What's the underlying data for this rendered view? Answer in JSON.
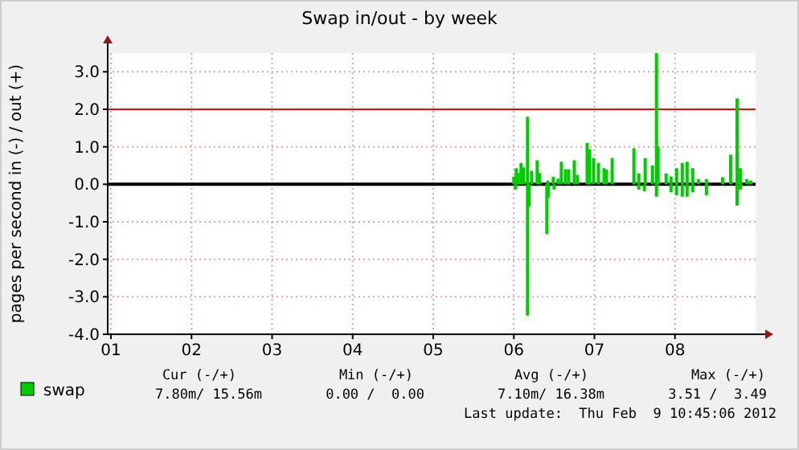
{
  "chart_data": {
    "type": "bar",
    "title": "Swap in/out - by week",
    "ylabel": "pages per second in (-) / out (+)",
    "xlim": [
      0.96,
      9.0
    ],
    "xticks": [
      {
        "value": 1,
        "label": "01"
      },
      {
        "value": 2,
        "label": "02"
      },
      {
        "value": 3,
        "label": "03"
      },
      {
        "value": 4,
        "label": "04"
      },
      {
        "value": 5,
        "label": "05"
      },
      {
        "value": 6,
        "label": "06"
      },
      {
        "value": 7,
        "label": "07"
      },
      {
        "value": 8,
        "label": "08"
      }
    ],
    "ylim": [
      -4,
      3.5
    ],
    "yticks": [
      {
        "value": -4,
        "label": "-4.0"
      },
      {
        "value": -3,
        "label": "-3.0"
      },
      {
        "value": -2,
        "label": "-2.0"
      },
      {
        "value": -1,
        "label": "-1.0"
      },
      {
        "value": 0,
        "label": "0.0"
      },
      {
        "value": 1,
        "label": "1.0"
      },
      {
        "value": 2,
        "label": "2.0"
      },
      {
        "value": 3,
        "label": "3.0"
      }
    ],
    "grid": true,
    "legend": "bottom left",
    "ref_lines": [
      {
        "axis": "y",
        "value": 2,
        "color": "#ff0000"
      },
      {
        "axis": "y",
        "value": 0,
        "color": "#000000"
      }
    ],
    "series": [
      {
        "name": "swap",
        "color": "#00cc00",
        "x": [
          6.0,
          6.03,
          6.055,
          6.09,
          6.12,
          6.17,
          6.22,
          6.29,
          6.32,
          6.42,
          6.49,
          6.55,
          6.59,
          6.64,
          6.68,
          6.75,
          6.79,
          6.91,
          6.94,
          6.99,
          7.05,
          7.12,
          7.15,
          7.22,
          7.49,
          7.55,
          7.63,
          7.72,
          7.77,
          7.79,
          7.89,
          7.95,
          8.02,
          8.09,
          8.15,
          8.22,
          8.29,
          8.39,
          8.59,
          8.69,
          8.77,
          8.81,
          8.89,
          8.94
        ],
        "values": [
          0.2,
          0.43,
          0.3,
          0.57,
          0.45,
          1.8,
          0.36,
          0.64,
          0.3,
          0.1,
          0.2,
          0.15,
          0.6,
          0.4,
          0.4,
          0.64,
          0.25,
          1.1,
          0.93,
          0.7,
          0.57,
          0.43,
          0.39,
          0.7,
          0.96,
          0.29,
          0.7,
          0.5,
          3.5,
          1.0,
          0.29,
          0.21,
          0.43,
          0.57,
          0.6,
          0.43,
          0.14,
          0.14,
          0.19,
          0.79,
          2.29,
          0.43,
          0.14,
          0.1
        ]
      },
      {
        "color": "#00cc00",
        "x": [
          6.02,
          6.17,
          6.19,
          6.41,
          6.43,
          6.5,
          7.55,
          7.62,
          7.77,
          7.95,
          8.02,
          8.09,
          8.15,
          8.22,
          8.39,
          8.77,
          8.81
        ],
        "values": [
          -0.14,
          -3.5,
          -0.6,
          -1.33,
          -0.36,
          -0.14,
          -0.14,
          -0.19,
          -0.33,
          -0.21,
          -0.29,
          -0.33,
          -0.33,
          -0.21,
          -0.29,
          -0.57,
          -0.14
        ]
      }
    ],
    "annotations": [
      "Cur (-/+)",
      "Min (-/+)",
      "Avg (-/+)",
      "Max (-/+)",
      "7.80m/ 15.56m",
      "0.00 /  0.00",
      "7.10m/ 16.38m",
      "3.51 /  3.49",
      "Last update:  Thu Feb  9 10:45:06 2012"
    ]
  }
}
